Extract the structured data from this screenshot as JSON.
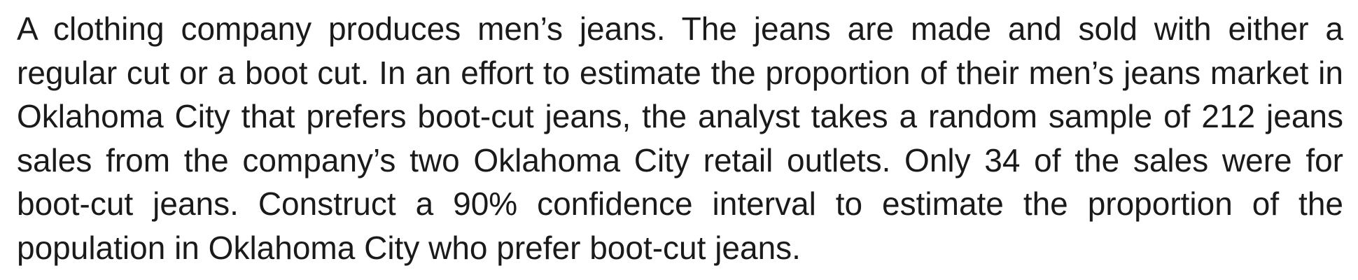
{
  "problem": {
    "text": "A clothing company produces men’s jeans. The jeans are made and sold with either a regular cut or a boot cut. In an effort to estimate the proportion of their men’s jeans market in Oklahoma City that prefers boot-cut jeans, the analyst takes a random sample of 212 jeans sales from the company’s two Oklahoma City retail outlets. Only 34 of the sales were for boot-cut jeans. Construct a 90% confidence interval to estimate the proportion of the population in Oklahoma City who prefer boot-cut jeans."
  }
}
